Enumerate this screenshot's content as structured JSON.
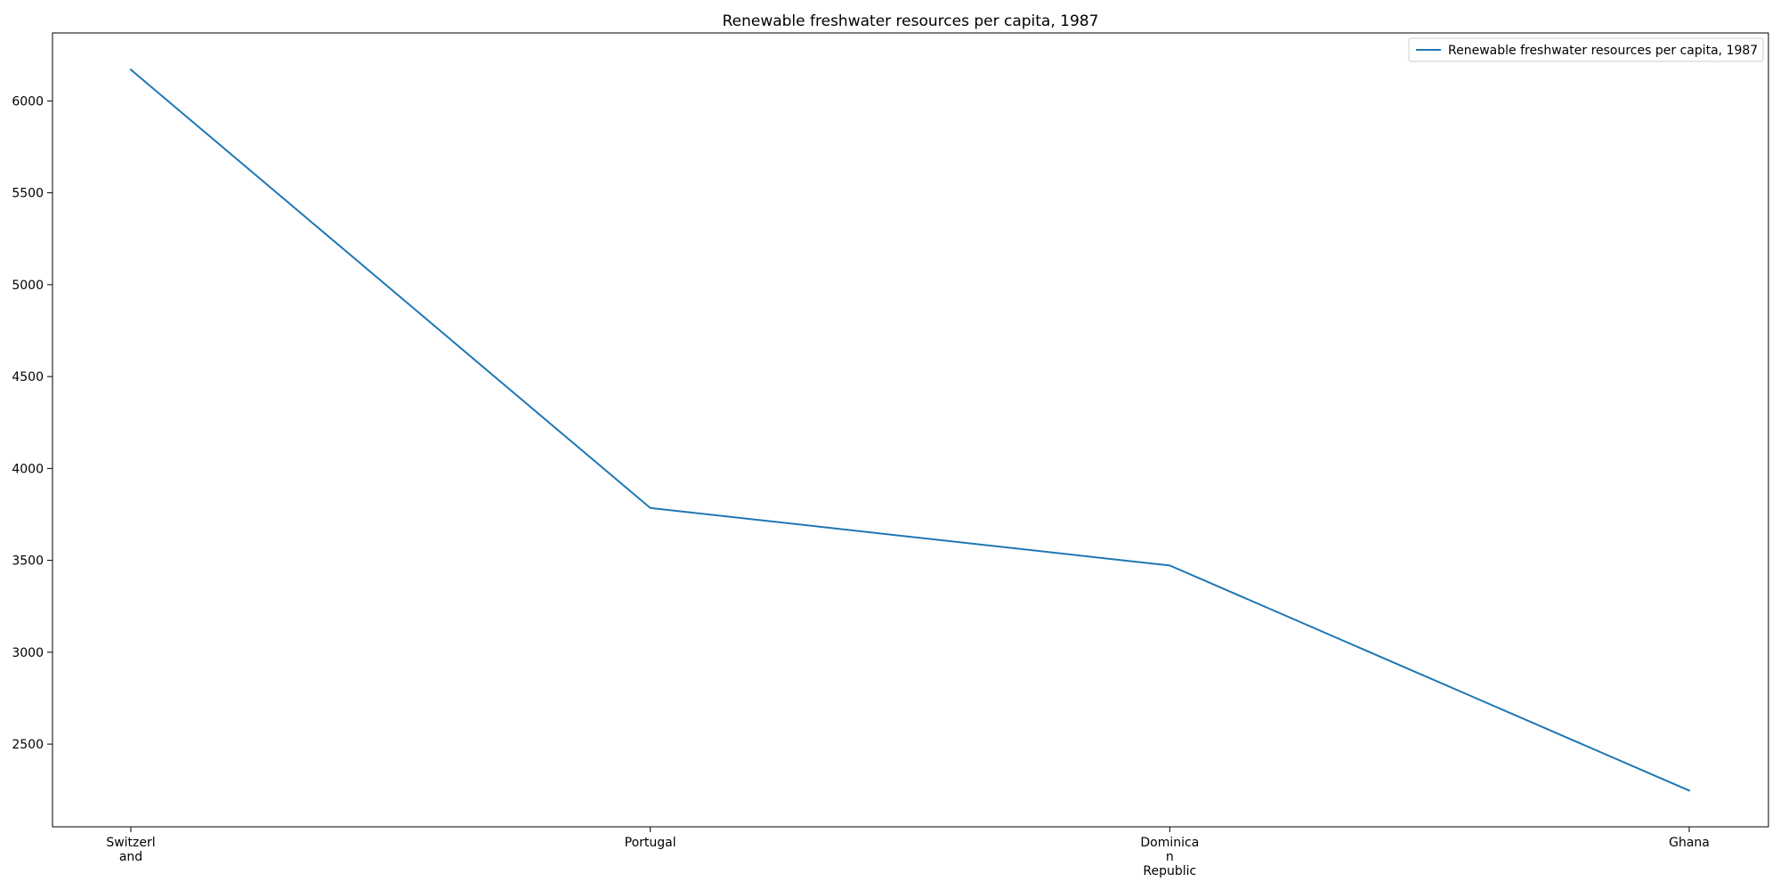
{
  "chart_data": {
    "type": "line",
    "title": "Renewable freshwater resources per capita, 1987",
    "xlabel": "",
    "ylabel": "",
    "categories": [
      [
        "Switzerl",
        "and"
      ],
      [
        "Portugal"
      ],
      [
        "Dominica",
        "n",
        "Republic"
      ],
      [
        "Ghana"
      ]
    ],
    "series": [
      {
        "name": "Renewable freshwater resources per capita, 1987",
        "values": [
          6170,
          3785,
          3472,
          2247
        ],
        "color": "#1f77b4"
      }
    ],
    "yticks": [
      2500,
      3000,
      3500,
      4000,
      4500,
      5000,
      5500,
      6000
    ],
    "ylim": [
      2050,
      6370
    ],
    "grid": false,
    "legend_position": "top-right"
  }
}
